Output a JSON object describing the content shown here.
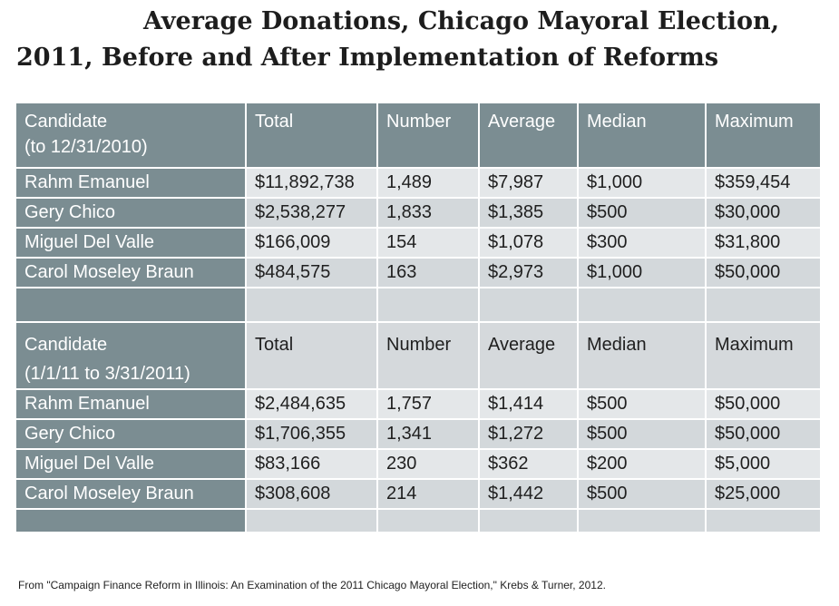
{
  "title": {
    "line1": "Average Donations, Chicago Mayoral Election,",
    "line2": "2011, Before and After Implementation of Reforms"
  },
  "section1": {
    "header": {
      "candidate": "Candidate",
      "period": "(to 12/31/2010)",
      "total": "Total",
      "number": "Number",
      "average": "Average",
      "median": "Median",
      "maximum": "Maximum"
    },
    "rows": [
      {
        "candidate": "Rahm Emanuel",
        "total": "$11,892,738",
        "number": "1,489",
        "average": "$7,987",
        "median": "$1,000",
        "maximum": "$359,454"
      },
      {
        "candidate": "Gery Chico",
        "total": "$2,538,277",
        "number": "1,833",
        "average": "$1,385",
        "median": "$500",
        "maximum": "$30,000"
      },
      {
        "candidate": "Miguel Del Valle",
        "total": "$166,009",
        "number": "154",
        "average": "$1,078",
        "median": "$300",
        "maximum": "$31,800"
      },
      {
        "candidate": "Carol Moseley Braun",
        "total": "$484,575",
        "number": "163",
        "average": "$2,973",
        "median": "$1,000",
        "maximum": "$50,000"
      }
    ]
  },
  "section2": {
    "header": {
      "candidate": "Candidate",
      "period": "(1/1/11 to 3/31/2011)",
      "total": "Total",
      "number": "Number",
      "average": "Average",
      "median": "Median",
      "maximum": "Maximum"
    },
    "rows": [
      {
        "candidate": "Rahm Emanuel",
        "total": "$2,484,635",
        "number": "1,757",
        "average": "$1,414",
        "median": "$500",
        "maximum": "$50,000"
      },
      {
        "candidate": "Gery Chico",
        "total": "$1,706,355",
        "number": "1,341",
        "average": "$1,272",
        "median": "$500",
        "maximum": "$50,000"
      },
      {
        "candidate": "Miguel Del Valle",
        "total": "$83,166",
        "number": "230",
        "average": "$362",
        "median": "$200",
        "maximum": "$5,000"
      },
      {
        "candidate": "Carol Moseley Braun",
        "total": "$308,608",
        "number": "214",
        "average": "$1,442",
        "median": "$500",
        "maximum": "$25,000"
      }
    ]
  },
  "source": "From \"Campaign Finance Reform in Illinois: An Examination of the 2011 Chicago Mayoral Election,\" Krebs & Turner, 2012.",
  "colors": {
    "header_bg": "#7b8d92",
    "row_light": "#e4e7e9",
    "row_dark": "#d3d8db"
  }
}
